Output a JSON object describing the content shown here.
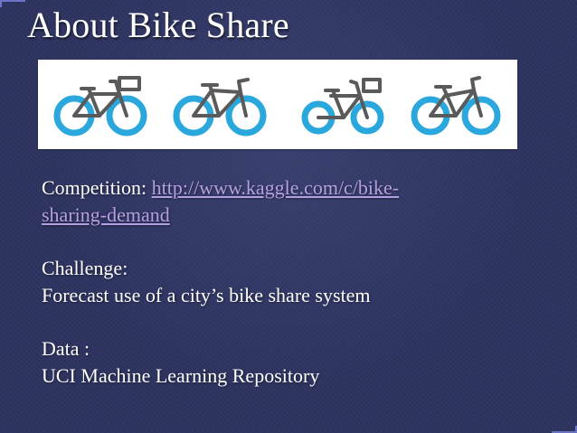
{
  "slide": {
    "title": "About Bike Share",
    "competition_label": "Competition: ",
    "competition_link_line1": "http://www.kaggle.com/c/bike-",
    "competition_link_line2": "sharing-demand",
    "challenge_label": "Challenge:",
    "challenge_text": "Forecast use of a city’s bike share system",
    "data_label": "Data :",
    "data_text": "UCI Machine Learning Repository"
  },
  "banner": {
    "icons": [
      "bike-basket-icon",
      "bike-road-icon",
      "bike-kids-icon",
      "bike-small-icon"
    ],
    "wheel_color": "#2aa7dc",
    "frame_color": "#5a5a5a"
  },
  "colors": {
    "background": "#2e3460",
    "link": "#b59fe4",
    "text": "#ffffff"
  }
}
